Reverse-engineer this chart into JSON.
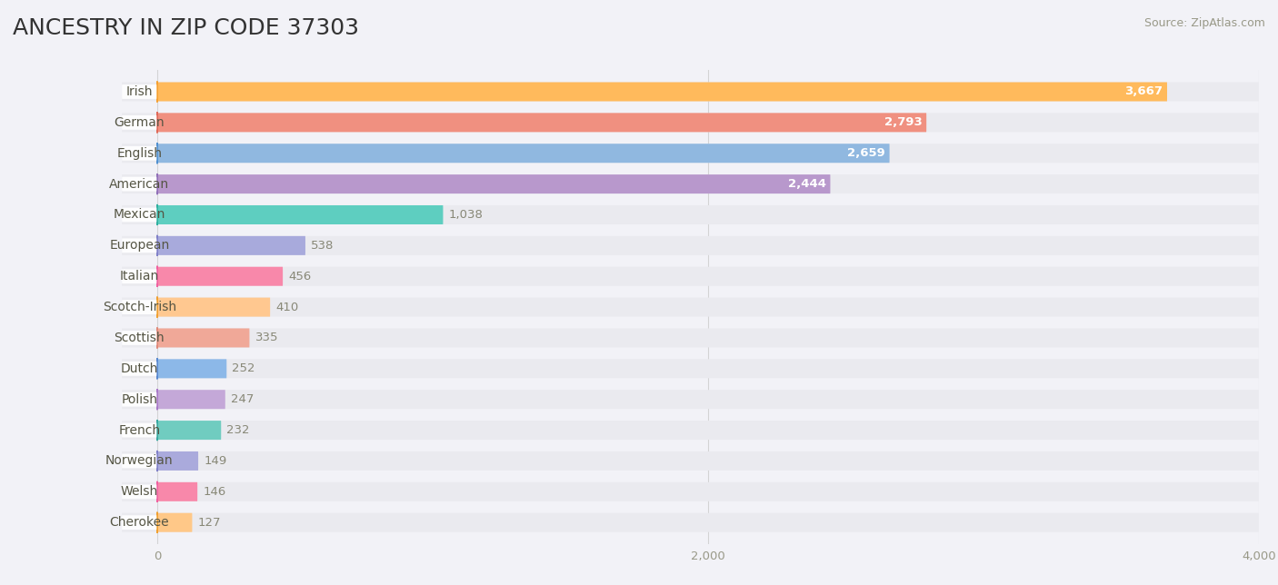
{
  "title": "ANCESTRY IN ZIP CODE 37303",
  "source": "Source: ZipAtlas.com",
  "categories": [
    "Irish",
    "German",
    "English",
    "American",
    "Mexican",
    "European",
    "Italian",
    "Scotch-Irish",
    "Scottish",
    "Dutch",
    "Polish",
    "French",
    "Norwegian",
    "Welsh",
    "Cherokee"
  ],
  "values": [
    3667,
    2793,
    2659,
    2444,
    1038,
    538,
    456,
    410,
    335,
    252,
    247,
    232,
    149,
    146,
    127
  ],
  "bar_colors": [
    "#FFBA5C",
    "#F09080",
    "#90B8E0",
    "#B898CC",
    "#5ECEC0",
    "#A8AADC",
    "#F888AA",
    "#FFC890",
    "#F0A898",
    "#8CB8E8",
    "#C4A8D8",
    "#70CCC0",
    "#AAAADC",
    "#F888AA",
    "#FFC888"
  ],
  "circle_colors": [
    "#F5A030",
    "#E06858",
    "#5090D0",
    "#9070B8",
    "#30B0A0",
    "#8080C8",
    "#F060A0",
    "#F0A030",
    "#E08878",
    "#5888D0",
    "#A878C8",
    "#38A8A0",
    "#8080C8",
    "#F060A0",
    "#F0A030"
  ],
  "xlim_data": 4000,
  "xtick_vals": [
    0,
    2000,
    4000
  ],
  "bg_color": "#F2F2F7",
  "row_bg_color": "#EAEAEF",
  "title_fontsize": 18,
  "label_fontsize": 10,
  "value_fontsize": 9.5,
  "source_fontsize": 9
}
